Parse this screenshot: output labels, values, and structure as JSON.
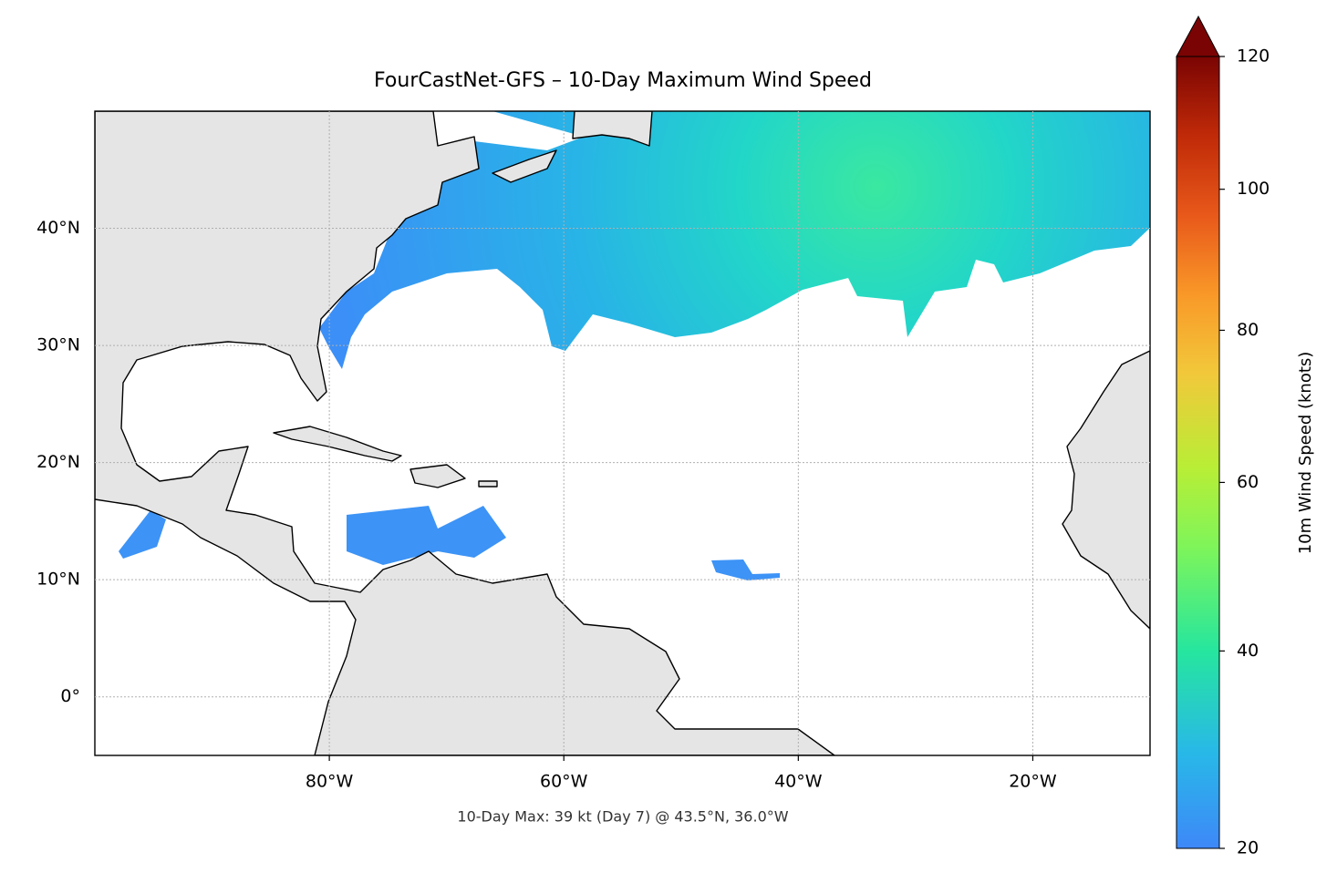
{
  "chart_data": {
    "type": "map",
    "title": "FourCastNet-GFS – 10-Day Maximum Wind Speed",
    "annotation": "10-Day Max: 39 kt (Day 7) @ 43.5°N, 36.0°W",
    "xlim": [
      -100,
      -10
    ],
    "ylim": [
      -5,
      50
    ],
    "xticks": [
      {
        "value": -80,
        "label": "80°W"
      },
      {
        "value": -60,
        "label": "60°W"
      },
      {
        "value": -40,
        "label": "40°W"
      },
      {
        "value": -20,
        "label": "20°W"
      }
    ],
    "yticks": [
      {
        "value": 0,
        "label": "0°"
      },
      {
        "value": 10,
        "label": "10°N"
      },
      {
        "value": 20,
        "label": "20°N"
      },
      {
        "value": 30,
        "label": "30°N"
      },
      {
        "value": 40,
        "label": "40°N"
      }
    ],
    "grid": true,
    "colorbar": {
      "label": "10m Wind Speed (knots)",
      "lim": [
        20,
        120
      ],
      "ticks": [
        20,
        40,
        60,
        80,
        100,
        120
      ],
      "extend": "max",
      "power": 0.7
    }
  }
}
